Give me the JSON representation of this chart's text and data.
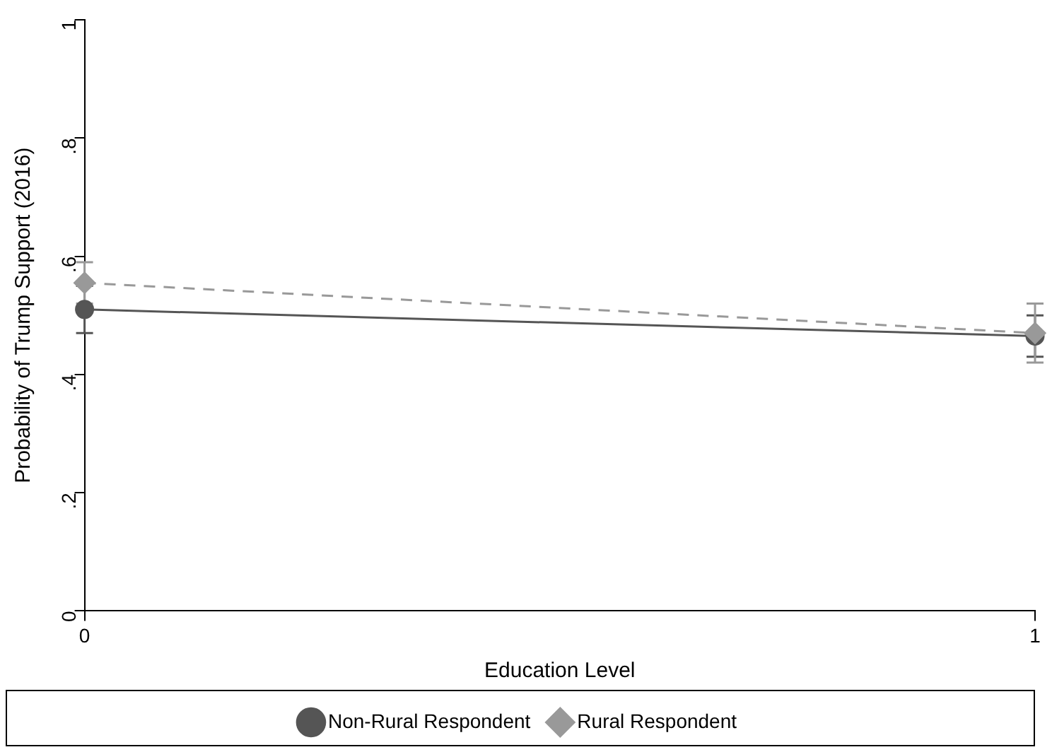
{
  "chart_data": {
    "type": "line",
    "xlabel": "Education Level",
    "ylabel": "Probability of Trump Support (2016)",
    "x": [
      0,
      1
    ],
    "xlim": [
      0,
      1
    ],
    "xticks": [
      0,
      1
    ],
    "ylim": [
      0,
      1
    ],
    "yticks": [
      {
        "value": 0,
        "label": "0"
      },
      {
        "value": 0.2,
        "label": ".2"
      },
      {
        "value": 0.4,
        "label": ".4"
      },
      {
        "value": 0.6,
        "label": ".6"
      },
      {
        "value": 0.8,
        "label": ".8"
      },
      {
        "value": 1,
        "label": "1"
      }
    ],
    "series": [
      {
        "name": "Non-Rural Respondent",
        "color": "#555555",
        "values": [
          0.51,
          0.465
        ],
        "errors": [
          [
            0.47,
            0.55
          ],
          [
            0.43,
            0.5
          ]
        ],
        "marker": "circle",
        "line_style": "solid"
      },
      {
        "name": "Rural Respondent",
        "color": "#999999",
        "values": [
          0.555,
          0.47
        ],
        "errors": [
          [
            0.52,
            0.59
          ],
          [
            0.42,
            0.52
          ]
        ],
        "marker": "diamond",
        "line_style": "dashed"
      }
    ],
    "grid": false,
    "legend": "bottom"
  }
}
